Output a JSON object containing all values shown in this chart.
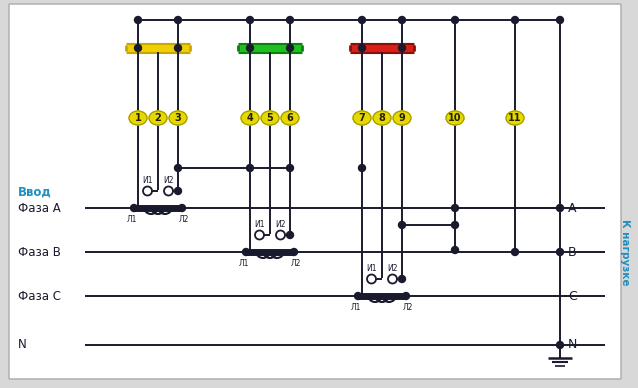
{
  "bg_color": "#d8d8d8",
  "white_bg": "#ffffff",
  "wire_color": "#1a1a2e",
  "phase_colors": {
    "A": "#e8c000",
    "B": "#18a818",
    "C": "#cc2010"
  },
  "terminal_bg": "#e8d800",
  "terminal_numbers": [
    "1",
    "2",
    "3",
    "4",
    "5",
    "6",
    "7",
    "8",
    "9",
    "10",
    "11"
  ],
  "left_labels": [
    "Ввод",
    "Фаза А",
    "Фаза В",
    "Фаза С",
    "N"
  ],
  "right_labels": [
    "А",
    "В",
    "С",
    "N"
  ],
  "right_vertical_label": "К нагрузке",
  "label_color": "#2090c0"
}
